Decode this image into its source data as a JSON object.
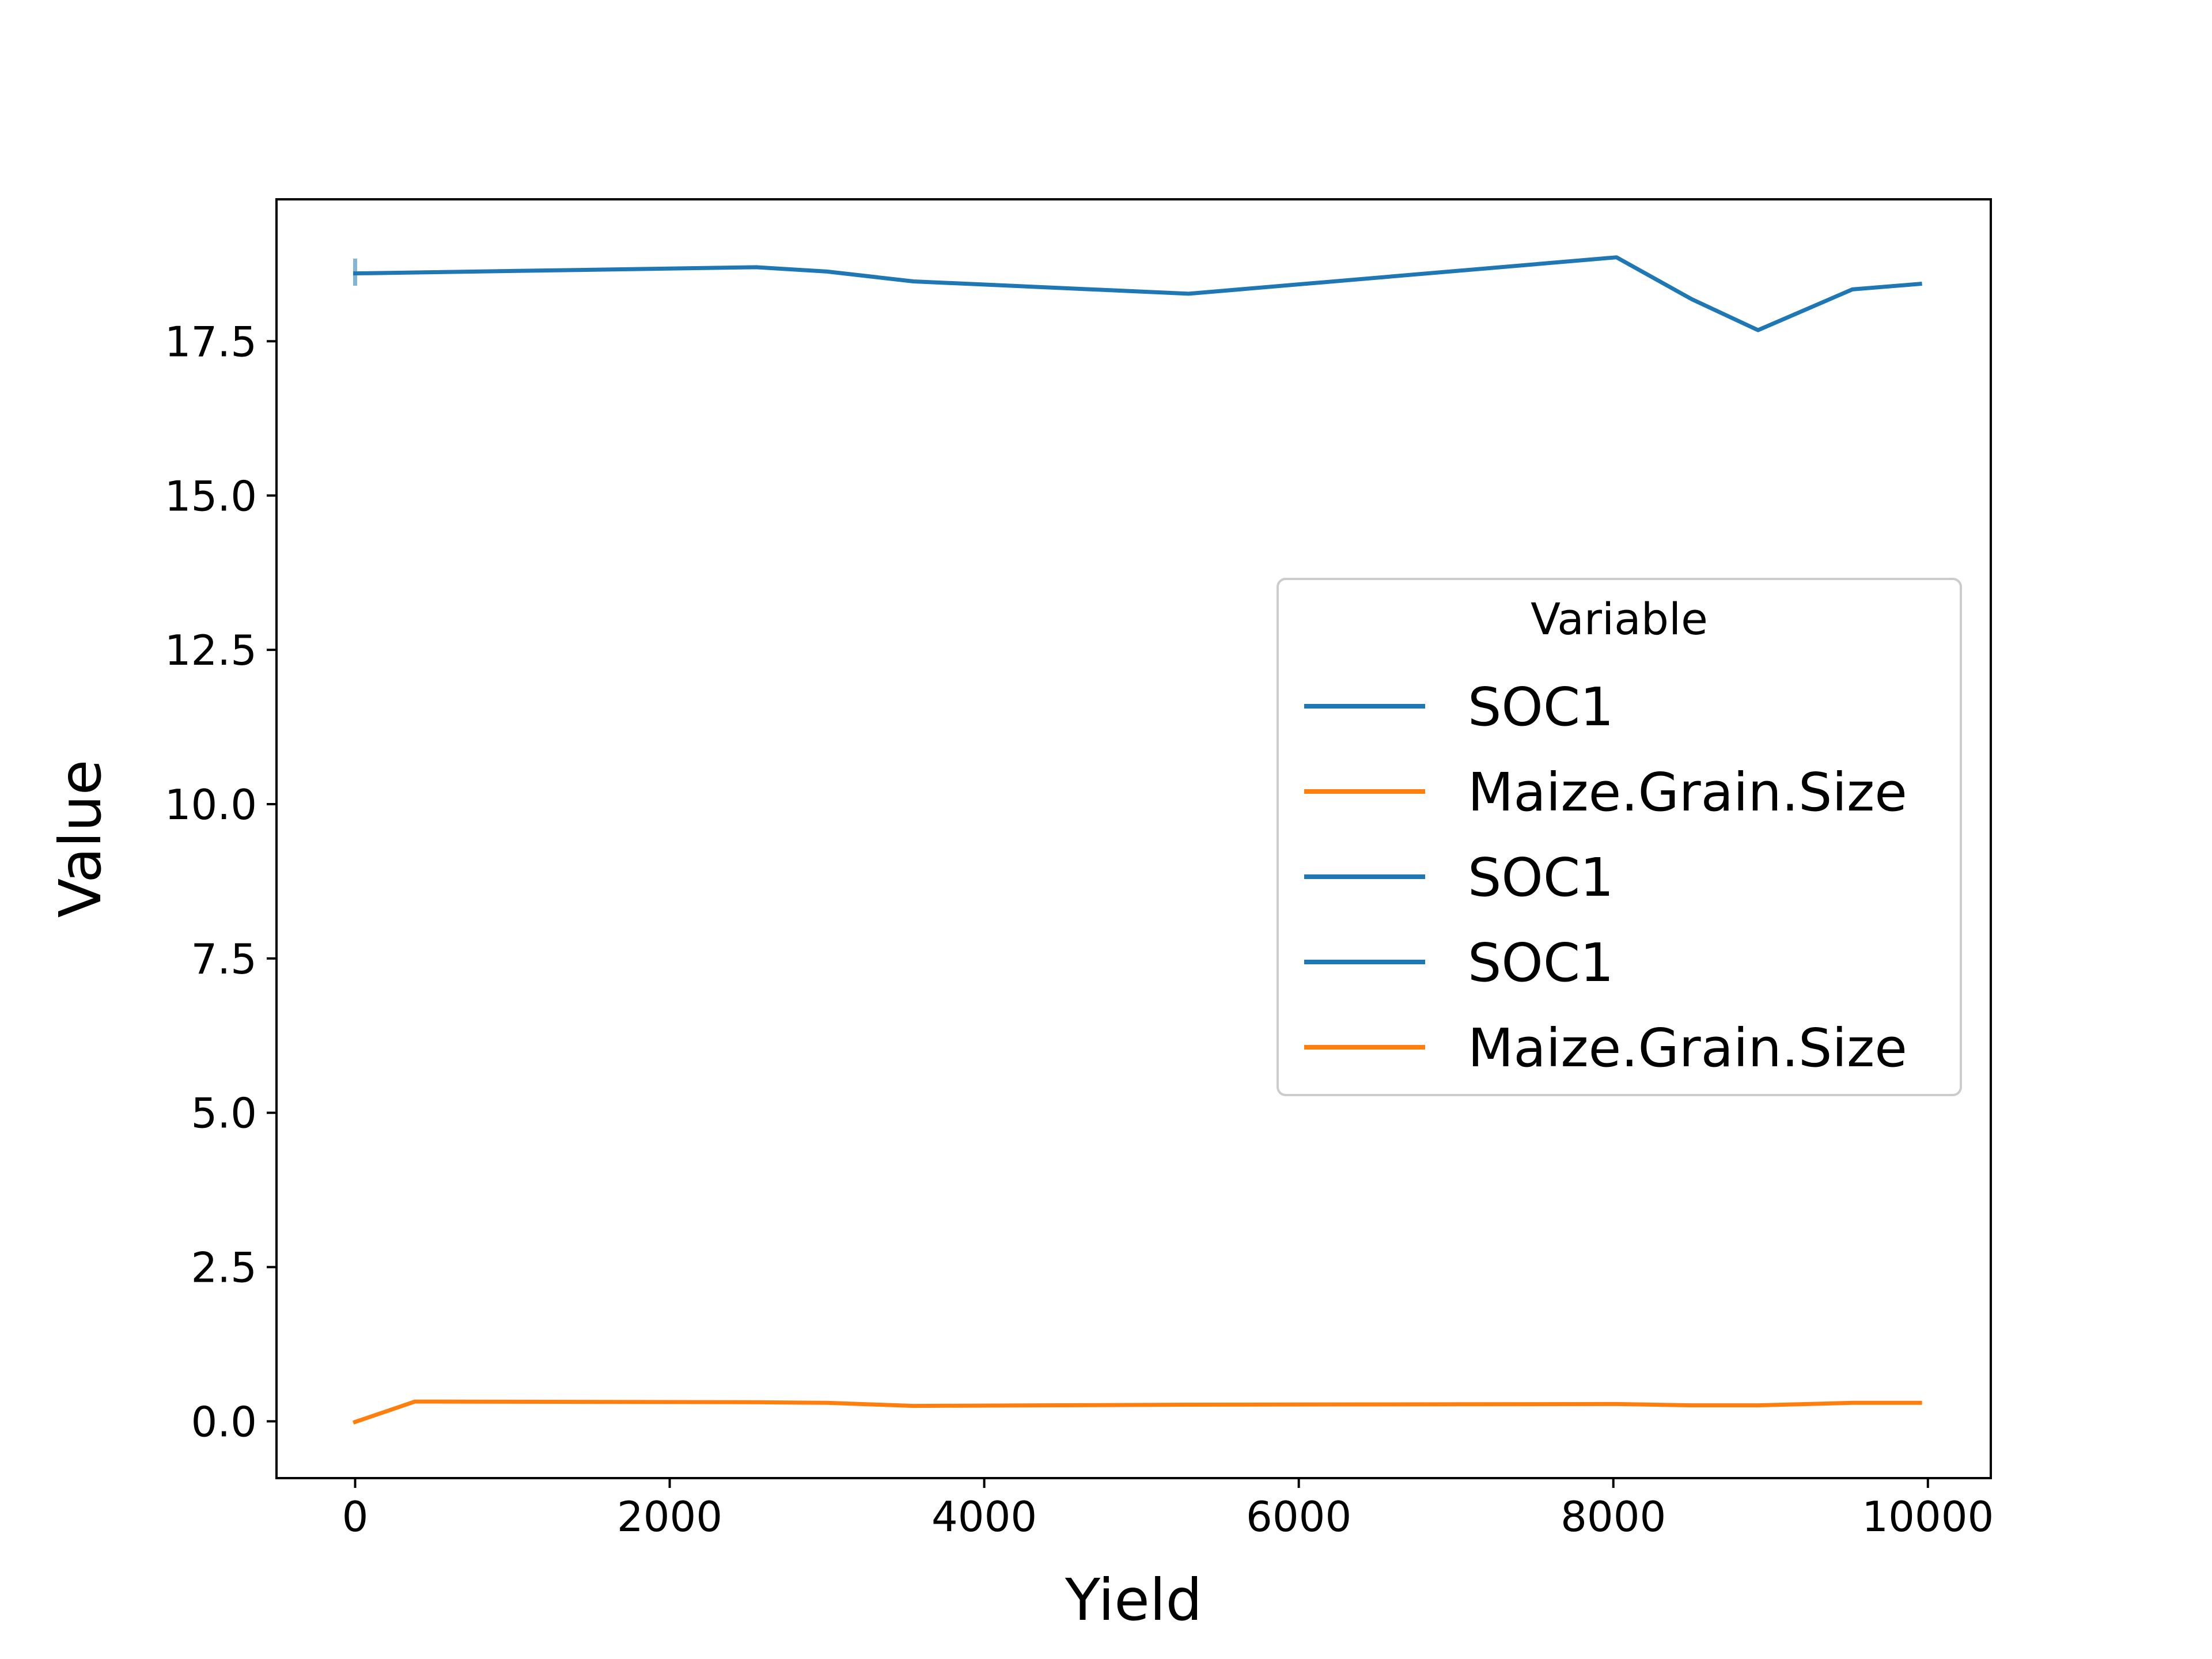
{
  "chart_data": {
    "type": "line",
    "title": "",
    "xlabel": "Yield",
    "ylabel": "Value",
    "xlim": [
      -500,
      10400
    ],
    "ylim": [
      -0.92,
      19.8
    ],
    "xticks": [
      0,
      2000,
      4000,
      6000,
      8000,
      10000
    ],
    "xtick_labels": [
      "0",
      "2000",
      "4000",
      "6000",
      "8000",
      "10000"
    ],
    "yticks": [
      0.0,
      2.5,
      5.0,
      7.5,
      10.0,
      12.5,
      15.0,
      17.5
    ],
    "ytick_labels": [
      "0.0",
      "2.5",
      "5.0",
      "7.5",
      "10.0",
      "12.5",
      "15.0",
      "17.5"
    ],
    "grid": false,
    "legend": {
      "title": "Variable",
      "position": "center-right"
    },
    "series": [
      {
        "name": "SOC1",
        "color": "#1f77b4",
        "x": [
          0,
          2550,
          3000,
          3550,
          5300,
          8020,
          8500,
          8920,
          9520,
          9950
        ],
        "y": [
          18.6,
          18.7,
          18.63,
          18.47,
          18.27,
          18.86,
          18.18,
          17.68,
          18.34,
          18.43
        ],
        "error_bar": {
          "x": 0,
          "low": 18.4,
          "high": 18.84
        }
      },
      {
        "name": "Maize.Grain.Size",
        "color": "#ff7f0e",
        "x": [
          0,
          380,
          2550,
          3000,
          3550,
          5300,
          8020,
          8500,
          8920,
          9520,
          9950
        ],
        "y": [
          -0.01,
          0.32,
          0.31,
          0.3,
          0.25,
          0.27,
          0.28,
          0.26,
          0.26,
          0.3,
          0.3
        ]
      },
      {
        "name": "SOC1",
        "color": "#1f77b4",
        "x": [],
        "y": []
      },
      {
        "name": "SOC1",
        "color": "#1f77b4",
        "x": [],
        "y": []
      },
      {
        "name": "Maize.Grain.Size",
        "color": "#ff7f0e",
        "x": [],
        "y": []
      }
    ]
  }
}
